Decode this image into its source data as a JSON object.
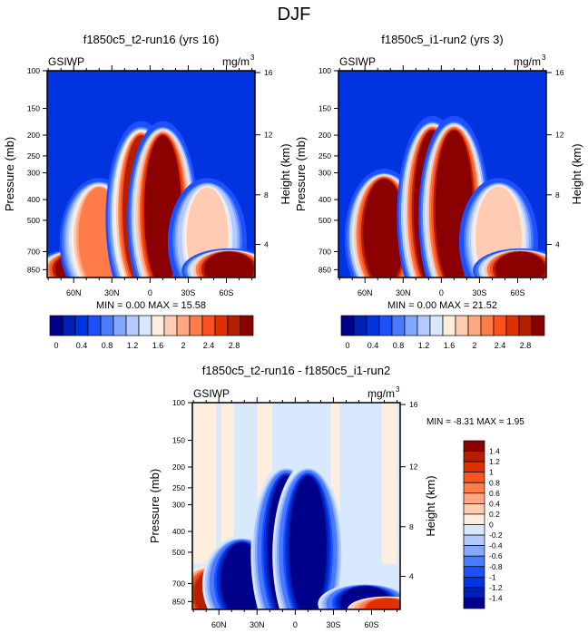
{
  "figure": {
    "title": "DJF"
  },
  "chart_data": [
    {
      "type": "heatmap",
      "id": "top-left",
      "title": "f1850c5_t2-run16 (yrs 16)",
      "left_label": "GSIWP",
      "units": "mg/m",
      "units_superscript": "3",
      "xlabel": "",
      "ylabel": "Pressure (mb)",
      "ylabel_right": "Height (km)",
      "x_tick_labels": [
        "60N",
        "30N",
        "0",
        "30S",
        "60S"
      ],
      "x_tick_values": [
        60,
        30,
        0,
        -30,
        -60
      ],
      "xlim": [
        90,
        -90
      ],
      "y_tick_labels": [
        "100",
        "150",
        "200",
        "250",
        "300",
        "400",
        "500",
        "700",
        "850"
      ],
      "y_tick_values": [
        100,
        150,
        200,
        250,
        300,
        400,
        500,
        700,
        850
      ],
      "ylim": [
        1000,
        100
      ],
      "y_scale": "log",
      "right_tick_labels": [
        "16",
        "12",
        "8",
        "4"
      ],
      "right_tick_values": [
        16,
        12,
        8,
        4
      ],
      "stats": {
        "min_label": "MIN =",
        "min": "0.00",
        "max_label": "MAX =",
        "max": "15.58"
      },
      "colorbar": {
        "orientation": "horizontal",
        "levels": [
          0,
          0.2,
          0.4,
          0.6,
          0.8,
          1.0,
          1.2,
          1.4,
          1.6,
          1.8,
          2.0,
          2.2,
          2.4,
          2.6,
          2.8
        ],
        "tick_labels": [
          "0",
          "0.4",
          "0.8",
          "1.2",
          "1.6",
          "2",
          "2.4",
          "2.8"
        ],
        "colors": [
          "#00008b",
          "#0020b4",
          "#0034e0",
          "#1e50ff",
          "#4a7bff",
          "#82a8ff",
          "#b4caff",
          "#d8e8ff",
          "#ffeedd",
          "#ffcbb2",
          "#ffa682",
          "#ff7b48",
          "#ff5020",
          "#e03000",
          "#b22000",
          "#8b0000"
        ]
      },
      "features": [
        {
          "name": "nh-midlat-low",
          "lat": 55,
          "p_top": 700,
          "value": 3.0
        },
        {
          "name": "nh-midlat-slant",
          "lat": 40,
          "p_top": 350,
          "value": 2.0
        },
        {
          "name": "tropics-west",
          "lat": 7,
          "p_top": 200,
          "value": 2.6
        },
        {
          "name": "tropics-east",
          "lat": -10,
          "p_top": 200,
          "value": 2.9
        },
        {
          "name": "sh-midlat-mid",
          "lat": -45,
          "p_top": 350,
          "value": 1.6
        },
        {
          "name": "sh-midlat-low",
          "lat": -62,
          "p_top": 700,
          "value": 3.0
        }
      ]
    },
    {
      "type": "heatmap",
      "id": "top-right",
      "title": "f1850c5_i1-run2 (yrs 3)",
      "left_label": "GSIWP",
      "units": "mg/m",
      "units_superscript": "3",
      "xlabel": "",
      "ylabel": "Pressure (mb)",
      "ylabel_right": "Height (km)",
      "x_tick_labels": [
        "60N",
        "30N",
        "0",
        "30S",
        "60S"
      ],
      "x_tick_values": [
        60,
        30,
        0,
        -30,
        -60
      ],
      "xlim": [
        90,
        -90
      ],
      "y_tick_labels": [
        "100",
        "150",
        "200",
        "250",
        "300",
        "400",
        "500",
        "700",
        "850"
      ],
      "y_tick_values": [
        100,
        150,
        200,
        250,
        300,
        400,
        500,
        700,
        850
      ],
      "ylim": [
        1000,
        100
      ],
      "y_scale": "log",
      "right_tick_labels": [
        "16",
        "12",
        "8",
        "4"
      ],
      "right_tick_values": [
        16,
        12,
        8,
        4
      ],
      "stats": {
        "min_label": "MIN =",
        "min": "0.00",
        "max_label": "MAX =",
        "max": "21.52"
      },
      "colorbar": {
        "orientation": "horizontal",
        "levels": [
          0,
          0.2,
          0.4,
          0.6,
          0.8,
          1.0,
          1.2,
          1.4,
          1.6,
          1.8,
          2.0,
          2.2,
          2.4,
          2.6,
          2.8
        ],
        "tick_labels": [
          "0",
          "0.4",
          "0.8",
          "1.2",
          "1.6",
          "2",
          "2.4",
          "2.8"
        ],
        "colors": [
          "#00008b",
          "#0020b4",
          "#0034e0",
          "#1e50ff",
          "#4a7bff",
          "#82a8ff",
          "#b4caff",
          "#d8e8ff",
          "#ffeedd",
          "#ffcbb2",
          "#ffa682",
          "#ff7b48",
          "#ff5020",
          "#e03000",
          "#b22000",
          "#8b0000"
        ]
      },
      "features": [
        {
          "name": "nh-midlat",
          "lat": 45,
          "p_top": 320,
          "value": 3.0
        },
        {
          "name": "tropics-west",
          "lat": 7,
          "p_top": 190,
          "value": 3.0
        },
        {
          "name": "tropics-east",
          "lat": -10,
          "p_top": 190,
          "value": 3.0
        },
        {
          "name": "sh-midlat-mid",
          "lat": -45,
          "p_top": 350,
          "value": 1.8
        },
        {
          "name": "sh-midlat-low",
          "lat": -62,
          "p_top": 700,
          "value": 3.0
        }
      ]
    },
    {
      "type": "heatmap",
      "id": "bottom-diff",
      "title": "f1850c5_t2-run16 - f1850c5_i1-run2",
      "left_label": "GSIWP",
      "units": "mg/m",
      "units_superscript": "3",
      "xlabel": "",
      "ylabel": "Pressure (mb)",
      "ylabel_right": "Height (km)",
      "x_tick_labels": [
        "60N",
        "30N",
        "0",
        "30S",
        "60S"
      ],
      "x_tick_values": [
        60,
        30,
        0,
        -30,
        -60
      ],
      "xlim": [
        90,
        -90
      ],
      "y_tick_labels": [
        "100",
        "150",
        "200",
        "250",
        "300",
        "400",
        "500",
        "700",
        "850"
      ],
      "y_tick_values": [
        100,
        150,
        200,
        250,
        300,
        400,
        500,
        700,
        850
      ],
      "ylim": [
        1000,
        100
      ],
      "y_scale": "log",
      "right_tick_labels": [
        "16",
        "12",
        "8",
        "4"
      ],
      "right_tick_values": [
        16,
        12,
        8,
        4
      ],
      "stats": {
        "min_label": "MIN =",
        "min": "-8.31",
        "max_label": "MAX =",
        "max": "1.95"
      },
      "colorbar": {
        "orientation": "vertical",
        "levels": [
          -1.4,
          -1.2,
          -1.0,
          -0.8,
          -0.6,
          -0.4,
          -0.2,
          0,
          0.2,
          0.4,
          0.6,
          0.8,
          1.0,
          1.2,
          1.4
        ],
        "tick_labels": [
          "1.4",
          "1.2",
          "1",
          "0.8",
          "0.6",
          "0.4",
          "0.2",
          "0",
          "-0.2",
          "-0.4",
          "-0.6",
          "-0.8",
          "-1",
          "-1.2",
          "-1.4"
        ],
        "colors": [
          "#00008b",
          "#0020b4",
          "#0034e0",
          "#1e50ff",
          "#4a7bff",
          "#82a8ff",
          "#b4caff",
          "#d8e8ff",
          "#ffeedd",
          "#ffcbb2",
          "#ffa682",
          "#ff7b48",
          "#ff5020",
          "#e03000",
          "#b22000",
          "#8b0000"
        ]
      },
      "features": [
        {
          "name": "nh-60n-positive",
          "lat": 63,
          "p_top": 600,
          "value": 1.3
        },
        {
          "name": "nh-midlat-negative",
          "lat": 42,
          "p_top": 450,
          "value": -1.5
        },
        {
          "name": "tropics-west-negative",
          "lat": 7,
          "p_top": 220,
          "value": -1.5
        },
        {
          "name": "tropics-east-negative",
          "lat": -10,
          "p_top": 220,
          "value": -1.5
        },
        {
          "name": "sh-midlat-negative",
          "lat": -55,
          "p_top": 720,
          "value": -1.5
        },
        {
          "name": "sh-70s-positive",
          "lat": -72,
          "p_top": 820,
          "value": 1.0
        }
      ]
    }
  ]
}
